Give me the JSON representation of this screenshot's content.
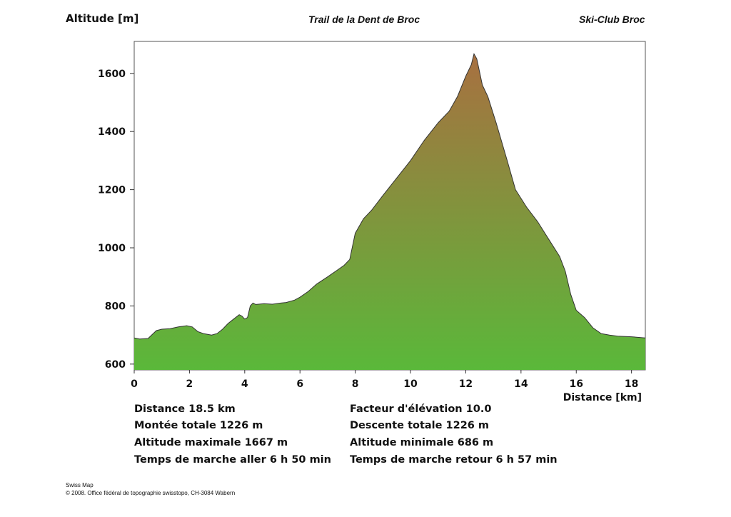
{
  "header": {
    "ylabel": "Altitude [m]",
    "title": "Trail de la Dent de Broc",
    "club": "Ski-Club Broc"
  },
  "chart_data": {
    "type": "area",
    "ylabel": "Altitude [m]",
    "xlabel": "Distance [km]",
    "xlim": [
      0,
      18.5
    ],
    "ylim": [
      580,
      1710
    ],
    "xticks": [
      0,
      2,
      4,
      6,
      8,
      10,
      12,
      14,
      16,
      18
    ],
    "yticks": [
      600,
      800,
      1000,
      1200,
      1400,
      1600
    ],
    "grid": false,
    "colors": {
      "low": "#5ab83a",
      "high": "#a87040",
      "line": "#333333"
    },
    "x": [
      0,
      0.2,
      0.5,
      0.8,
      1.0,
      1.3,
      1.6,
      1.9,
      2.1,
      2.3,
      2.5,
      2.8,
      3.0,
      3.2,
      3.4,
      3.6,
      3.8,
      3.9,
      4.0,
      4.1,
      4.2,
      4.3,
      4.4,
      4.7,
      5.0,
      5.3,
      5.5,
      5.8,
      6.0,
      6.3,
      6.6,
      7.0,
      7.3,
      7.6,
      7.8,
      8.0,
      8.3,
      8.6,
      9.0,
      9.5,
      10.0,
      10.5,
      11.0,
      11.4,
      11.7,
      12.0,
      12.2,
      12.3,
      12.4,
      12.6,
      12.8,
      13.1,
      13.5,
      13.8,
      14.2,
      14.6,
      15.0,
      15.4,
      15.6,
      15.8,
      16.0,
      16.3,
      16.6,
      16.9,
      17.2,
      17.5,
      18.0,
      18.5
    ],
    "y": [
      690,
      686,
      688,
      715,
      720,
      722,
      728,
      732,
      728,
      712,
      705,
      700,
      705,
      720,
      740,
      755,
      770,
      765,
      755,
      760,
      800,
      810,
      805,
      808,
      806,
      810,
      812,
      820,
      830,
      850,
      875,
      900,
      920,
      940,
      960,
      1050,
      1100,
      1130,
      1180,
      1240,
      1300,
      1370,
      1430,
      1470,
      1520,
      1590,
      1630,
      1667,
      1650,
      1560,
      1520,
      1430,
      1300,
      1200,
      1140,
      1090,
      1030,
      970,
      920,
      840,
      785,
      760,
      725,
      705,
      700,
      696,
      694,
      690
    ]
  },
  "stats": {
    "left": [
      "Distance 18.5 km",
      "Montée totale  1226 m",
      "Altitude maximale  1667 m",
      "Temps de marche aller  6 h 50 min"
    ],
    "right": [
      "Facteur d'élévation 10.0",
      "Descente totale  1226 m",
      "Altitude minimale  686 m",
      "Temps de marche retour  6 h 57 min"
    ]
  },
  "credits": {
    "line1": "Swiss Map",
    "line2": "© 2008. Office fédéral de topographie swisstopo, CH-3084 Wabern"
  }
}
